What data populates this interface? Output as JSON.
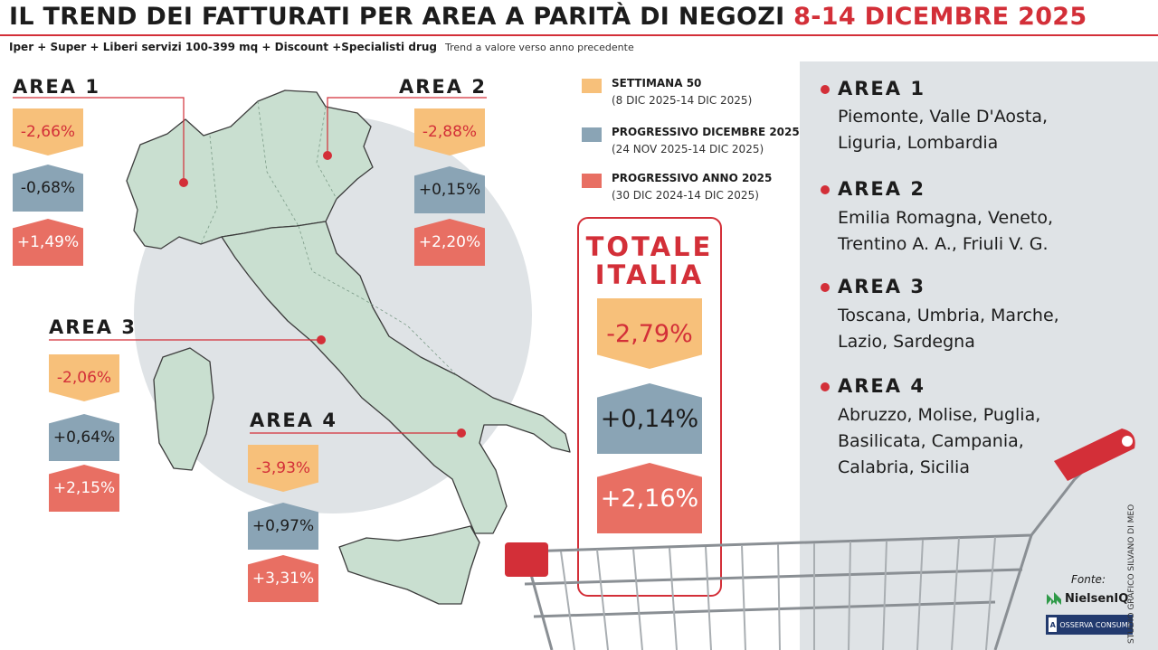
{
  "header": {
    "title_main": "IL TREND DEI FATTURATI PER AREA A PARITÀ DI NEGOZI",
    "title_dates": "8-14 DICEMBRE 2025",
    "subtitle": "Iper + Super + Liberi servizi 100-399 mq + Discount +Specialisti drug",
    "note": "Trend a valore verso anno precedente"
  },
  "legend": [
    {
      "title": "SETTIMANA 50",
      "period": "(8 DIC 2025-14 DIC 2025)",
      "color": "#f7c07a"
    },
    {
      "title": "PROGRESSIVO DICEMBRE 2025",
      "period": "(24 NOV 2025-14 DIC 2025)",
      "color": "#8aa4b5"
    },
    {
      "title": "PROGRESSIVO ANNO 2025",
      "period": "(30 DIC 2024-14 DIC 2025)",
      "color": "#e86f63"
    }
  ],
  "totale": {
    "title_line1": "TOTALE",
    "title_line2": "ITALIA",
    "week": "-2,79%",
    "month": "+0,14%",
    "year": "+2,16%"
  },
  "regions": [
    {
      "name": "AREA 1",
      "line1": "Piemonte, Valle D'Aosta,",
      "line2": "Liguria, Lombardia"
    },
    {
      "name": "AREA 2",
      "line1": "Emilia Romagna, Veneto,",
      "line2": "Trentino A. A., Friuli V. G."
    },
    {
      "name": "AREA 3",
      "line1": "Toscana, Umbria, Marche,",
      "line2": "Lazio, Sardegna"
    },
    {
      "name": "AREA 4",
      "line1": "Abruzzo, Molise, Puglia,",
      "line2": "Basilicata, Campania,",
      "line3": "Calabria, Sicilia"
    }
  ],
  "source": {
    "label": "Fonte:",
    "logo1": "NielsenIQ",
    "logo2": "OSSERVA CONSUMI",
    "credit": "STUDIO GRAFICO SILVANO DI MEO"
  },
  "chart_data": {
    "type": "table",
    "series": [
      {
        "name": "SETTIMANA 50",
        "values": [
          -2.66,
          -2.88,
          -2.06,
          -3.93,
          -2.79
        ]
      },
      {
        "name": "PROGRESSIVO DICEMBRE 2025",
        "values": [
          -0.68,
          0.15,
          0.64,
          0.97,
          0.14
        ]
      },
      {
        "name": "PROGRESSIVO ANNO 2025",
        "values": [
          1.49,
          2.2,
          2.15,
          3.31,
          2.16
        ]
      }
    ],
    "categories": [
      "AREA 1",
      "AREA 2",
      "AREA 3",
      "AREA 4",
      "TOTALE ITALIA"
    ],
    "areas": [
      {
        "name": "AREA 1",
        "week": "-2,66%",
        "month": "-0,68%",
        "year": "+1,49%"
      },
      {
        "name": "AREA 2",
        "week": "-2,88%",
        "month": "+0,15%",
        "year": "+2,20%"
      },
      {
        "name": "AREA 3",
        "week": "-2,06%",
        "month": "+0,64%",
        "year": "+2,15%"
      },
      {
        "name": "AREA 4",
        "week": "-3,93%",
        "month": "+0,97%",
        "year": "+3,31%"
      }
    ],
    "colors": {
      "week": "#f7c07a",
      "month": "#8aa4b5",
      "year": "#e86f63",
      "accent": "#d32f38",
      "map": "#c9dfd0"
    }
  }
}
